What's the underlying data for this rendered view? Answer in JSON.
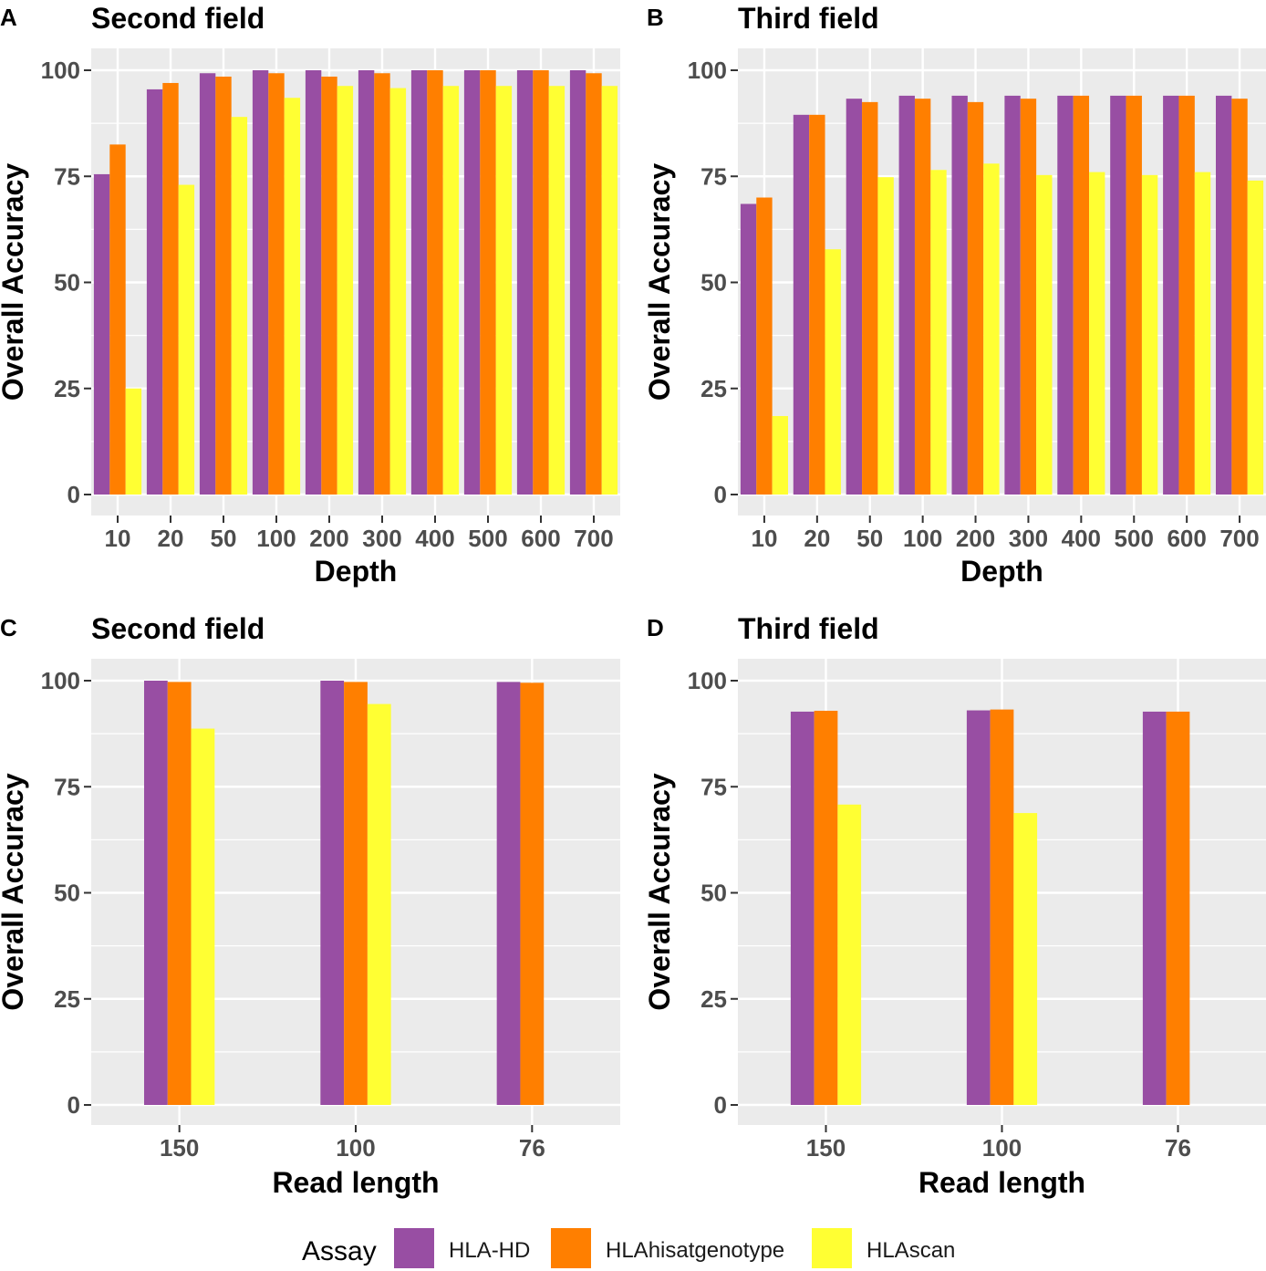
{
  "legend": {
    "title": "Assay",
    "items": [
      {
        "name": "HLA-HD",
        "color": "#984EA3"
      },
      {
        "name": "HLAhisatgenotype",
        "color": "#FF7F00"
      },
      {
        "name": "HLAscan",
        "color": "#FFFF33"
      }
    ]
  },
  "chart_data": [
    {
      "panel": "A",
      "type": "bar",
      "title": "Second field",
      "xlabel": "Depth",
      "ylabel": "Overall Accuracy",
      "ylim": [
        0,
        100
      ],
      "yticks": [
        0,
        25,
        50,
        75,
        100
      ],
      "categories": [
        "10",
        "20",
        "50",
        "100",
        "200",
        "300",
        "400",
        "500",
        "600",
        "700"
      ],
      "series": [
        {
          "name": "HLA-HD",
          "values": [
            75.5,
            95.5,
            99.3,
            100,
            100,
            100,
            100,
            100,
            100,
            100
          ]
        },
        {
          "name": "HLAhisatgenotype",
          "values": [
            82.5,
            97,
            98.5,
            99.3,
            98.5,
            99.3,
            100,
            100,
            100,
            99.3
          ]
        },
        {
          "name": "HLAscan",
          "values": [
            25,
            73,
            89,
            93.5,
            96.3,
            95.8,
            96.3,
            96.3,
            96.3,
            96.3
          ]
        }
      ]
    },
    {
      "panel": "B",
      "type": "bar",
      "title": "Third field",
      "xlabel": "Depth",
      "ylabel": "Overall Accuracy",
      "ylim": [
        0,
        100
      ],
      "yticks": [
        0,
        25,
        50,
        75,
        100
      ],
      "categories": [
        "10",
        "20",
        "50",
        "100",
        "200",
        "300",
        "400",
        "500",
        "600",
        "700"
      ],
      "series": [
        {
          "name": "HLA-HD",
          "values": [
            68.5,
            89.5,
            93.3,
            94,
            94,
            94,
            94,
            94,
            94,
            94
          ]
        },
        {
          "name": "HLAhisatgenotype",
          "values": [
            70,
            89.5,
            92.5,
            93.3,
            92.5,
            93.3,
            94,
            94,
            94,
            93.3
          ]
        },
        {
          "name": "HLAscan",
          "values": [
            18.5,
            57.8,
            74.8,
            76.5,
            78,
            75.3,
            76,
            75.3,
            76,
            74
          ]
        }
      ]
    },
    {
      "panel": "C",
      "type": "bar",
      "title": "Second field",
      "xlabel": "Read length",
      "ylabel": "Overall Accuracy",
      "ylim": [
        0,
        100
      ],
      "yticks": [
        0,
        25,
        50,
        75,
        100
      ],
      "categories": [
        "150",
        "100",
        "76"
      ],
      "series": [
        {
          "name": "HLA-HD",
          "values": [
            100,
            100,
            99.7
          ]
        },
        {
          "name": "HLAhisatgenotype",
          "values": [
            99.7,
            99.7,
            99.5
          ]
        },
        {
          "name": "HLAscan",
          "values": [
            88.7,
            94.5,
            null
          ]
        }
      ]
    },
    {
      "panel": "D",
      "type": "bar",
      "title": "Third field",
      "xlabel": "Read length",
      "ylabel": "Overall Accuracy",
      "ylim": [
        0,
        100
      ],
      "yticks": [
        0,
        25,
        50,
        75,
        100
      ],
      "categories": [
        "150",
        "100",
        "76"
      ],
      "series": [
        {
          "name": "HLA-HD",
          "values": [
            92.7,
            93,
            92.7
          ]
        },
        {
          "name": "HLAhisatgenotype",
          "values": [
            92.9,
            93.2,
            92.7
          ]
        },
        {
          "name": "HLAscan",
          "values": [
            70.8,
            68.8,
            null
          ]
        }
      ]
    }
  ]
}
